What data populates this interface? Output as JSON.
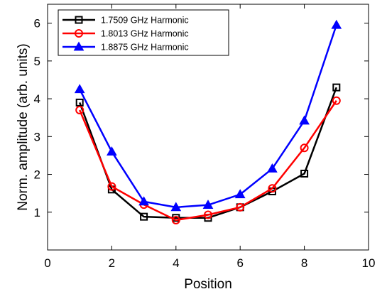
{
  "chart_data": {
    "type": "line",
    "title": "",
    "xlabel": "Position",
    "ylabel": "Norm. amplitude (arb. units)",
    "xlim": [
      0,
      10
    ],
    "ylim": [
      0,
      6.5
    ],
    "xticks": [
      0,
      2,
      4,
      6,
      8,
      10
    ],
    "yticks": [
      1,
      2,
      3,
      4,
      5,
      6
    ],
    "grid": false,
    "legend_position": "top-left",
    "series": [
      {
        "name": "1.7509 GHz Harmonic",
        "color": "#000000",
        "marker": "square",
        "x": [
          1,
          2,
          3,
          4,
          5,
          6,
          7,
          8,
          9
        ],
        "y": [
          3.9,
          1.6,
          0.88,
          0.85,
          0.85,
          1.13,
          1.55,
          2.02,
          4.3
        ]
      },
      {
        "name": "1.8013 GHz Harmonic",
        "color": "#ff0000",
        "marker": "circle",
        "x": [
          1,
          2,
          3,
          4,
          5,
          6,
          7,
          8,
          9
        ],
        "y": [
          3.7,
          1.68,
          1.2,
          0.79,
          0.93,
          1.13,
          1.63,
          2.7,
          3.95
        ]
      },
      {
        "name": "1.8875 GHz Harmonic",
        "color": "#0000ff",
        "marker": "triangle",
        "x": [
          1,
          2,
          3,
          4,
          5,
          6,
          7,
          8,
          9
        ],
        "y": [
          4.25,
          2.6,
          1.28,
          1.13,
          1.19,
          1.47,
          2.15,
          3.42,
          5.95
        ]
      }
    ]
  }
}
